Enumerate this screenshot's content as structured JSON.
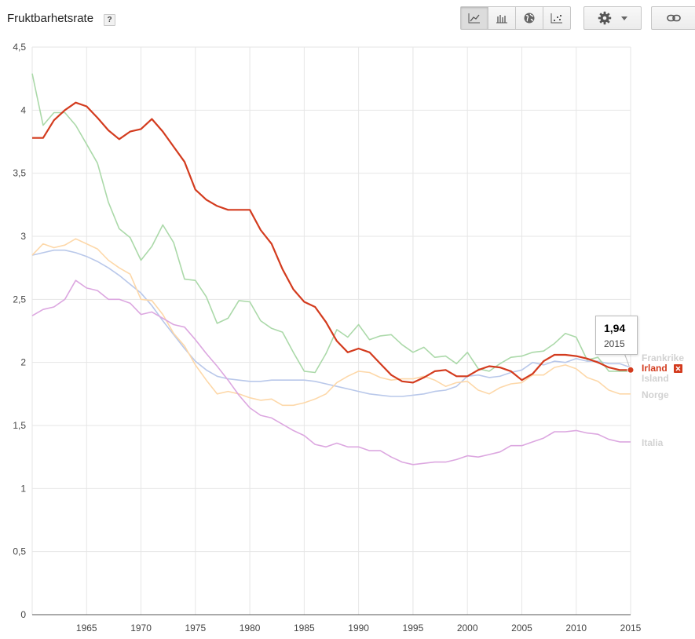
{
  "header": {
    "title": "Fruktbarhetsrate",
    "help_label": "?"
  },
  "toolbar": {
    "views": [
      {
        "icon": "line-chart-icon",
        "active": true
      },
      {
        "icon": "bar-chart-icon",
        "active": false
      },
      {
        "icon": "globe-map-icon",
        "active": false
      },
      {
        "icon": "scatter-chart-icon",
        "active": false
      }
    ],
    "settings_icon": "gear-icon",
    "dropdown_icon": "caret-down-icon",
    "link_icon": "link-icon"
  },
  "tooltip": {
    "value": "1,94",
    "year": "2015"
  },
  "colors": {
    "Irland": "#d33b1e",
    "Frankrike": "#b9c8ea",
    "Island": "#abd9a9",
    "Norge": "#fdd8a9",
    "Italia": "#dca7e0",
    "grid": "#e6e6e6",
    "axis": "#555555"
  },
  "chart_data": {
    "type": "line",
    "title": "Fruktbarhetsrate",
    "xlabel": "",
    "ylabel": "",
    "xlim": [
      1960,
      2015
    ],
    "ylim": [
      0,
      4.5
    ],
    "xticks": [
      "1965",
      "1970",
      "1975",
      "1980",
      "1985",
      "1990",
      "1995",
      "2000",
      "2005",
      "2010",
      "2015"
    ],
    "yticks": [
      "0",
      "0,5",
      "1",
      "1,5",
      "2",
      "2,5",
      "3",
      "3,5",
      "4",
      "4,5"
    ],
    "grid": true,
    "legend": "right, end-of-line labels",
    "x": [
      1960,
      1961,
      1962,
      1963,
      1964,
      1965,
      1966,
      1967,
      1968,
      1969,
      1970,
      1971,
      1972,
      1973,
      1974,
      1975,
      1976,
      1977,
      1978,
      1979,
      1980,
      1981,
      1982,
      1983,
      1984,
      1985,
      1986,
      1987,
      1988,
      1989,
      1990,
      1991,
      1992,
      1993,
      1994,
      1995,
      1996,
      1997,
      1998,
      1999,
      2000,
      2001,
      2002,
      2003,
      2004,
      2005,
      2006,
      2007,
      2008,
      2009,
      2010,
      2011,
      2012,
      2013,
      2014,
      2015
    ],
    "series": [
      {
        "name": "Frankrike",
        "values": [
          2.85,
          2.87,
          2.89,
          2.89,
          2.87,
          2.84,
          2.8,
          2.75,
          2.69,
          2.62,
          2.55,
          2.45,
          2.33,
          2.22,
          2.11,
          2.01,
          1.94,
          1.89,
          1.87,
          1.86,
          1.85,
          1.85,
          1.86,
          1.86,
          1.86,
          1.86,
          1.85,
          1.83,
          1.81,
          1.79,
          1.77,
          1.75,
          1.74,
          1.73,
          1.73,
          1.74,
          1.75,
          1.77,
          1.78,
          1.81,
          1.89,
          1.9,
          1.88,
          1.89,
          1.92,
          1.94,
          2.0,
          1.98,
          2.01,
          2.0,
          2.03,
          2.01,
          2.01,
          1.99,
          1.99,
          1.96
        ]
      },
      {
        "name": "Irland",
        "values": [
          3.78,
          3.78,
          3.92,
          4.0,
          4.06,
          4.03,
          3.94,
          3.84,
          3.77,
          3.83,
          3.85,
          3.93,
          3.83,
          3.71,
          3.59,
          3.37,
          3.29,
          3.24,
          3.21,
          3.21,
          3.21,
          3.05,
          2.94,
          2.74,
          2.58,
          2.48,
          2.44,
          2.32,
          2.17,
          2.08,
          2.11,
          2.08,
          1.99,
          1.9,
          1.85,
          1.84,
          1.88,
          1.93,
          1.94,
          1.89,
          1.89,
          1.94,
          1.97,
          1.96,
          1.93,
          1.86,
          1.91,
          2.01,
          2.06,
          2.06,
          2.05,
          2.03,
          2.0,
          1.96,
          1.94,
          1.94
        ]
      },
      {
        "name": "Island",
        "values": [
          4.29,
          3.88,
          3.98,
          3.98,
          3.88,
          3.73,
          3.58,
          3.27,
          3.06,
          2.99,
          2.81,
          2.92,
          3.09,
          2.95,
          2.66,
          2.65,
          2.52,
          2.31,
          2.35,
          2.49,
          2.48,
          2.33,
          2.27,
          2.24,
          2.08,
          1.93,
          1.92,
          2.07,
          2.26,
          2.2,
          2.3,
          2.18,
          2.21,
          2.22,
          2.14,
          2.08,
          2.12,
          2.04,
          2.05,
          1.99,
          2.08,
          1.95,
          1.93,
          1.99,
          2.04,
          2.05,
          2.08,
          2.09,
          2.15,
          2.23,
          2.2,
          2.02,
          2.04,
          1.93,
          1.93,
          1.93
        ]
      },
      {
        "name": "Norge",
        "values": [
          2.85,
          2.94,
          2.91,
          2.93,
          2.98,
          2.94,
          2.9,
          2.81,
          2.75,
          2.7,
          2.5,
          2.49,
          2.38,
          2.23,
          2.13,
          1.98,
          1.86,
          1.75,
          1.77,
          1.75,
          1.72,
          1.7,
          1.71,
          1.66,
          1.66,
          1.68,
          1.71,
          1.75,
          1.84,
          1.89,
          1.93,
          1.92,
          1.88,
          1.86,
          1.87,
          1.87,
          1.89,
          1.86,
          1.81,
          1.84,
          1.85,
          1.78,
          1.75,
          1.8,
          1.83,
          1.84,
          1.9,
          1.9,
          1.96,
          1.98,
          1.95,
          1.88,
          1.85,
          1.78,
          1.75,
          1.75
        ]
      },
      {
        "name": "Italia",
        "values": [
          2.37,
          2.42,
          2.44,
          2.5,
          2.65,
          2.59,
          2.57,
          2.5,
          2.5,
          2.47,
          2.38,
          2.4,
          2.35,
          2.3,
          2.28,
          2.18,
          2.07,
          1.97,
          1.86,
          1.74,
          1.64,
          1.58,
          1.56,
          1.51,
          1.46,
          1.42,
          1.35,
          1.33,
          1.36,
          1.33,
          1.33,
          1.3,
          1.3,
          1.25,
          1.21,
          1.19,
          1.2,
          1.21,
          1.21,
          1.23,
          1.26,
          1.25,
          1.27,
          1.29,
          1.34,
          1.34,
          1.37,
          1.4,
          1.45,
          1.45,
          1.46,
          1.44,
          1.43,
          1.39,
          1.37,
          1.37
        ]
      }
    ],
    "highlight": {
      "series": "Irland",
      "x": 2015,
      "y": 1.94
    }
  }
}
